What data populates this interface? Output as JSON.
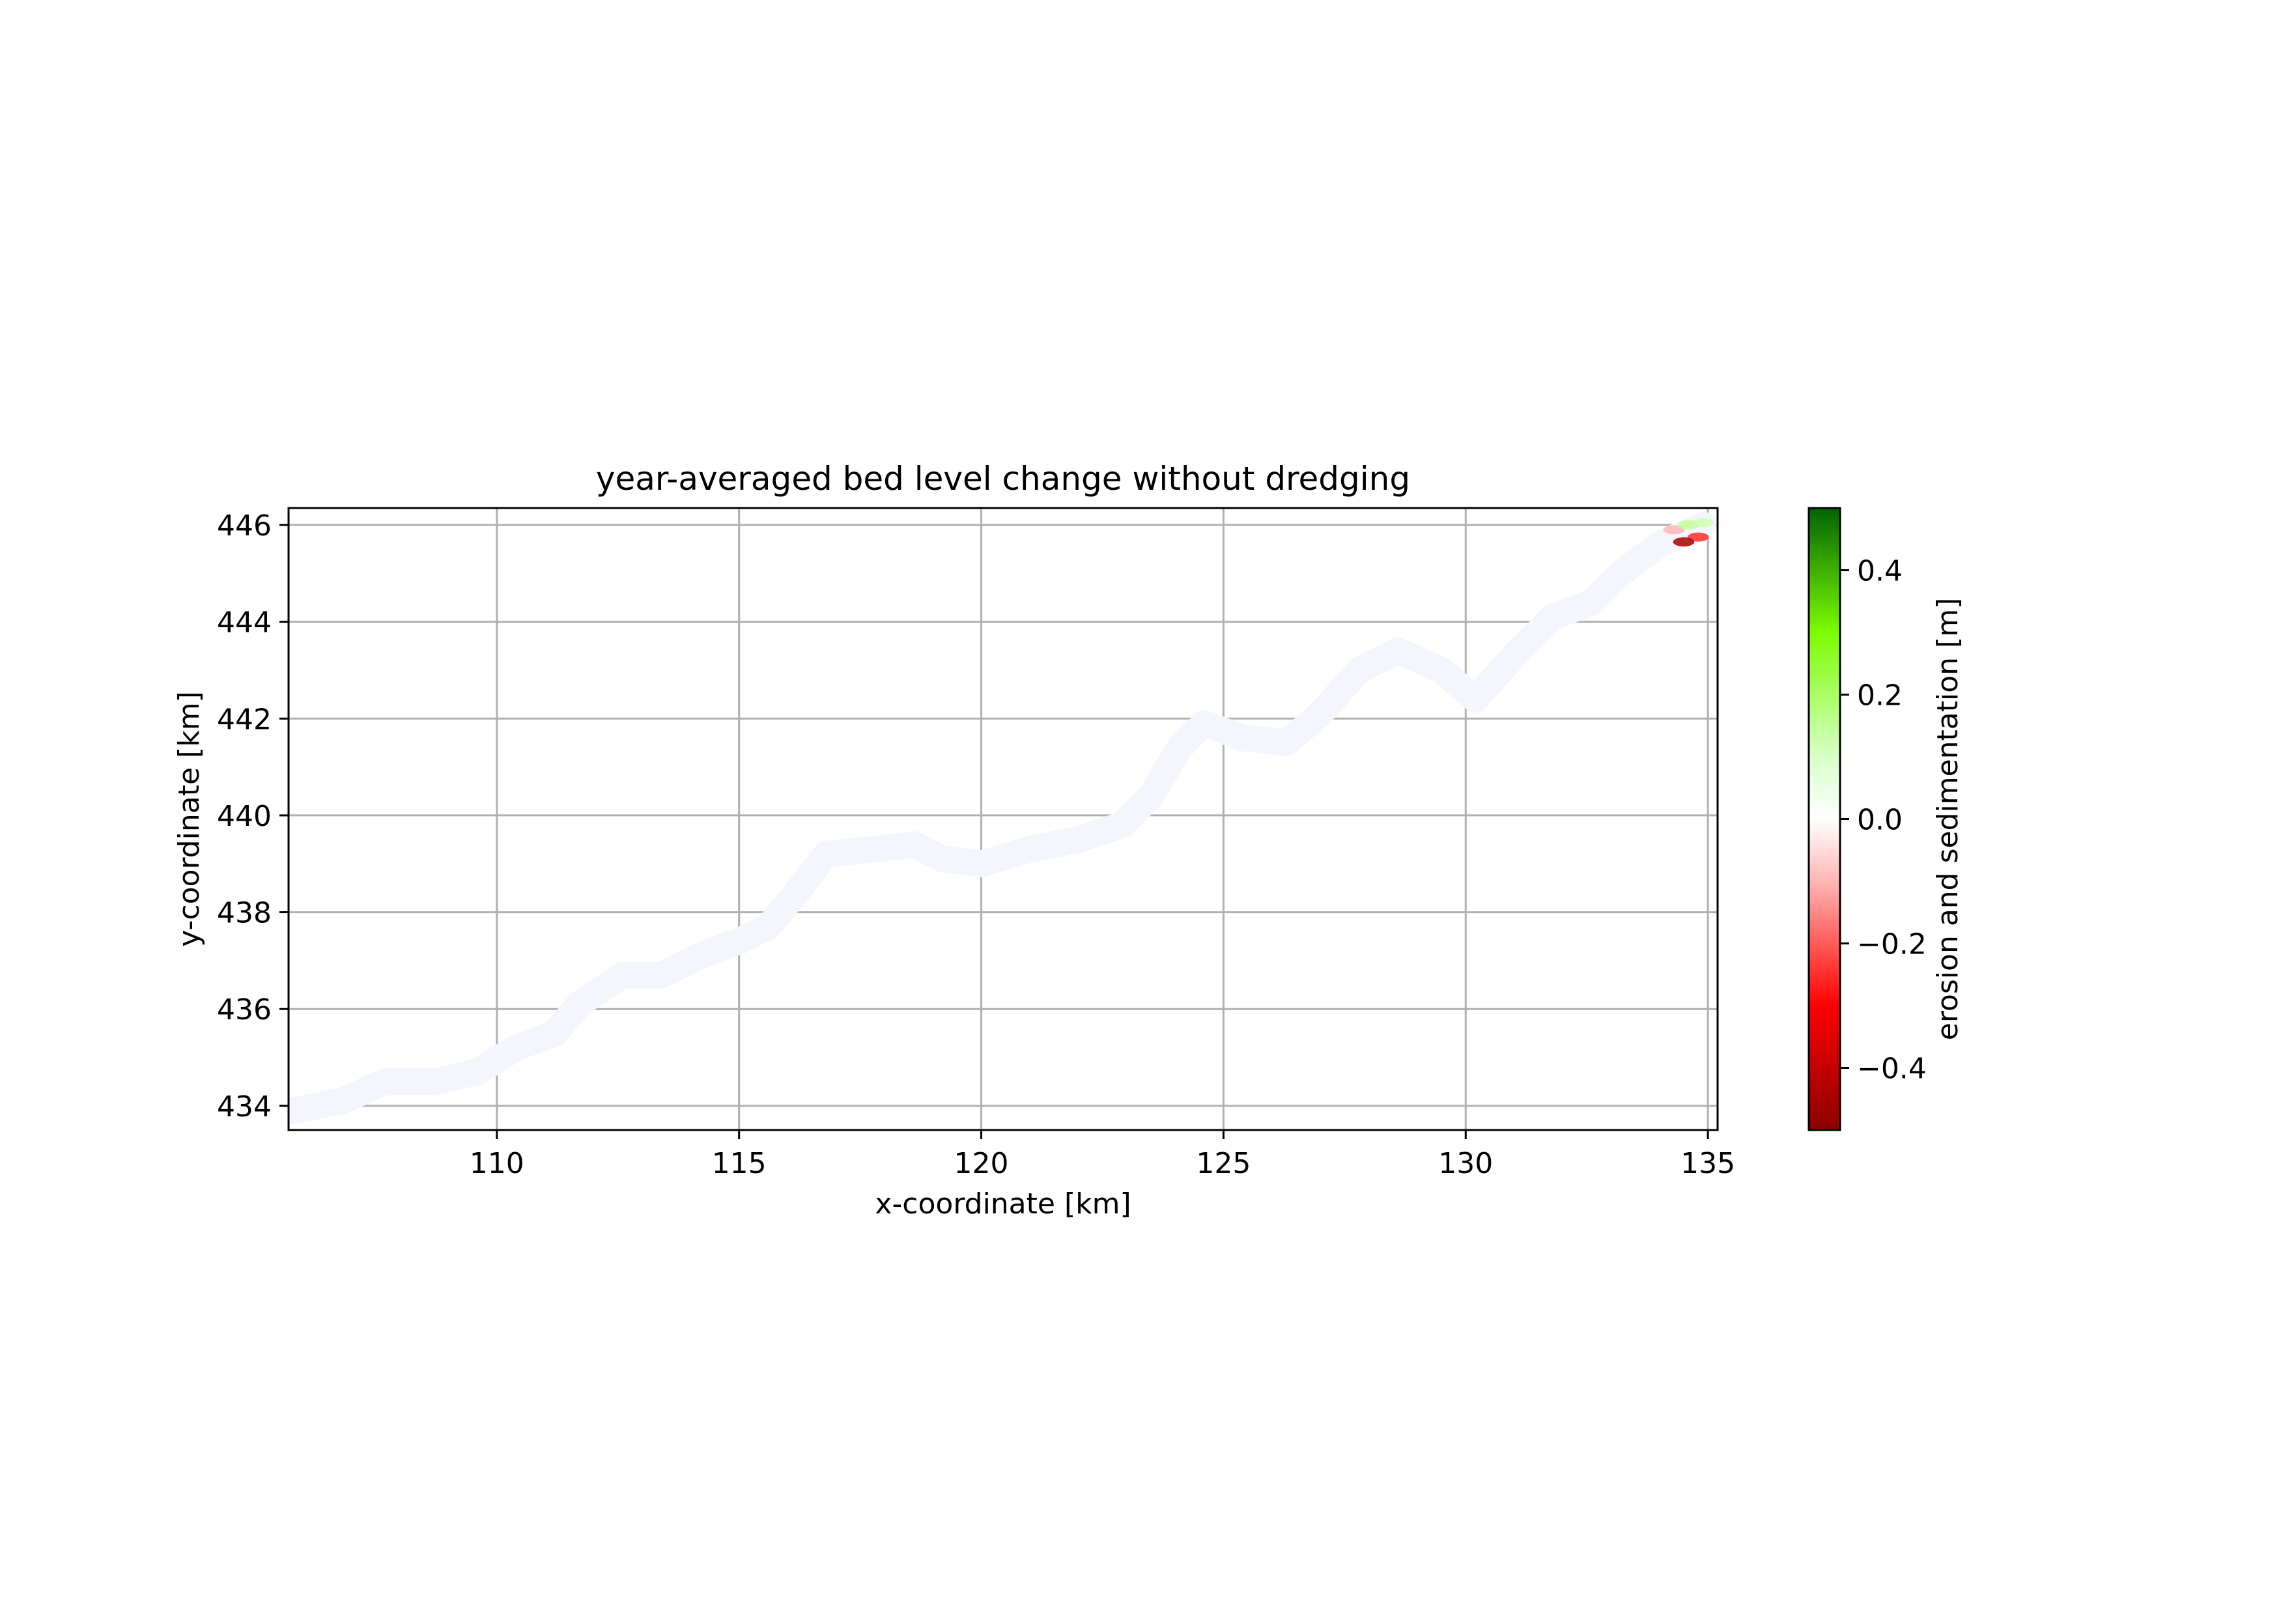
{
  "chart_data": {
    "type": "heatmap",
    "title": "year-averaged bed level change without dredging",
    "xlabel": "x-coordinate [km]",
    "ylabel": "y-coordinate [km]",
    "xlim": [
      105.7,
      135.2
    ],
    "ylim": [
      433.5,
      446.35
    ],
    "x_ticks": [
      110,
      115,
      120,
      125,
      130,
      135
    ],
    "y_ticks": [
      434,
      436,
      438,
      440,
      442,
      444,
      446
    ],
    "grid": true,
    "channel_centerline": [
      [
        105.8,
        433.9
      ],
      [
        106.8,
        434.1
      ],
      [
        107.7,
        434.5
      ],
      [
        108.7,
        434.5
      ],
      [
        109.6,
        434.7
      ],
      [
        110.4,
        435.2
      ],
      [
        111.2,
        435.5
      ],
      [
        111.7,
        436.1
      ],
      [
        112.6,
        436.7
      ],
      [
        113.4,
        436.7
      ],
      [
        114.2,
        437.1
      ],
      [
        115.0,
        437.4
      ],
      [
        115.6,
        437.7
      ],
      [
        116.1,
        438.3
      ],
      [
        116.8,
        439.2
      ],
      [
        117.8,
        439.3
      ],
      [
        118.6,
        439.4
      ],
      [
        119.2,
        439.1
      ],
      [
        120.0,
        439.0
      ],
      [
        121.0,
        439.3
      ],
      [
        122.0,
        439.5
      ],
      [
        122.9,
        439.8
      ],
      [
        123.5,
        440.4
      ],
      [
        124.1,
        441.4
      ],
      [
        124.6,
        441.9
      ],
      [
        125.4,
        441.6
      ],
      [
        126.3,
        441.5
      ],
      [
        127.0,
        442.1
      ],
      [
        127.8,
        443.0
      ],
      [
        128.6,
        443.4
      ],
      [
        129.5,
        443.0
      ],
      [
        130.2,
        442.4
      ],
      [
        131.0,
        443.3
      ],
      [
        131.8,
        444.1
      ],
      [
        132.6,
        444.4
      ],
      [
        133.2,
        445.0
      ],
      [
        134.0,
        445.6
      ],
      [
        134.9,
        446.0
      ]
    ],
    "channel_fill_value": 0.0,
    "channel_width_km": 0.55,
    "hotspots": [
      {
        "x": 134.3,
        "y": 445.9,
        "value": -0.1
      },
      {
        "x": 134.6,
        "y": 446.0,
        "value": 0.15
      },
      {
        "x": 134.8,
        "y": 445.75,
        "value": -0.25
      },
      {
        "x": 134.5,
        "y": 445.65,
        "value": -0.45
      },
      {
        "x": 134.9,
        "y": 446.05,
        "value": 0.12
      }
    ],
    "colorbar": {
      "label": "erosion and sedimentation [m]",
      "vmin": -0.5,
      "vmax": 0.5,
      "ticks": [
        -0.4,
        -0.2,
        0.0,
        0.2,
        0.4
      ],
      "tick_labels": [
        "−0.4",
        "−0.2",
        "0.0",
        "0.2",
        "0.4"
      ],
      "colormap": [
        {
          "value": -0.5,
          "color": "#8b0000"
        },
        {
          "value": -0.3,
          "color": "#ff0000"
        },
        {
          "value": -0.1,
          "color": "#ffb6b6"
        },
        {
          "value": 0.0,
          "color": "#ffffff"
        },
        {
          "value": 0.1,
          "color": "#d8ffc8"
        },
        {
          "value": 0.3,
          "color": "#7cfc00"
        },
        {
          "value": 0.5,
          "color": "#006400"
        }
      ]
    },
    "colors": {
      "channel": "#f5f5fd",
      "grid": "#b0b0b0",
      "axes": "#000000"
    }
  }
}
